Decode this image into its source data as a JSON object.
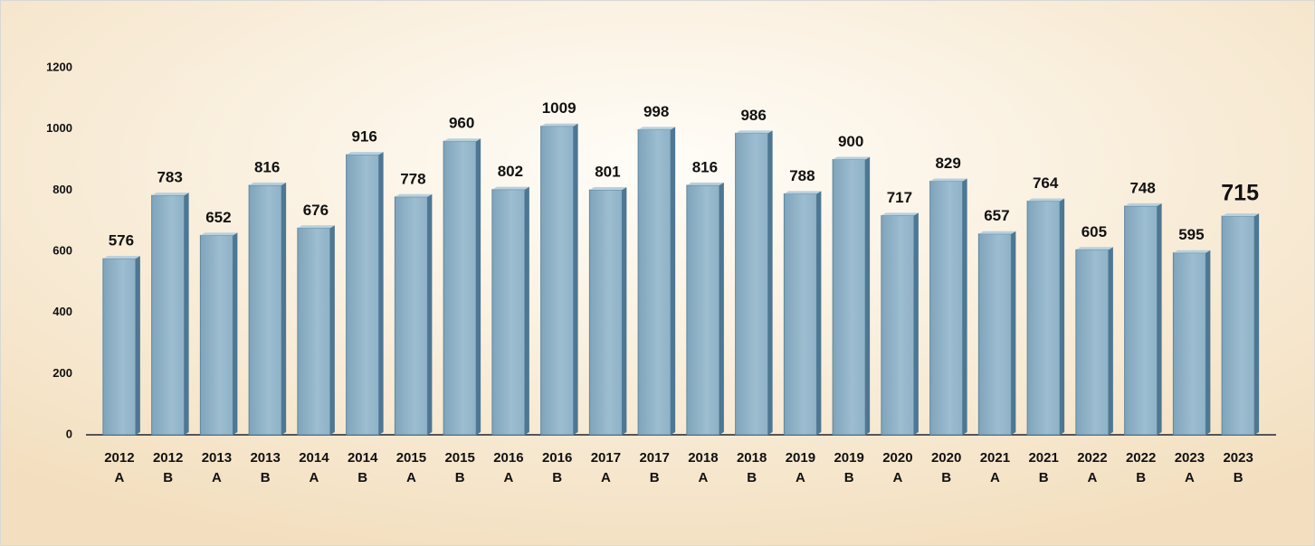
{
  "chart_data": {
    "type": "bar3d",
    "categories": [
      [
        "2012",
        "A"
      ],
      [
        "2012",
        "B"
      ],
      [
        "2013",
        "A"
      ],
      [
        "2013",
        "B"
      ],
      [
        "2014",
        "A"
      ],
      [
        "2014",
        "B"
      ],
      [
        "2015",
        "A"
      ],
      [
        "2015",
        "B"
      ],
      [
        "2016",
        "A"
      ],
      [
        "2016",
        "B"
      ],
      [
        "2017",
        "A"
      ],
      [
        "2017",
        "B"
      ],
      [
        "2018",
        "A"
      ],
      [
        "2018",
        "B"
      ],
      [
        "2019",
        "A"
      ],
      [
        "2019",
        "B"
      ],
      [
        "2020",
        "A"
      ],
      [
        "2020",
        "B"
      ],
      [
        "2021",
        "A"
      ],
      [
        "2021",
        "B"
      ],
      [
        "2022",
        "A"
      ],
      [
        "2022",
        "B"
      ],
      [
        "2023",
        "A"
      ],
      [
        "2023",
        "B"
      ]
    ],
    "values": [
      576,
      783,
      652,
      816,
      676,
      916,
      778,
      960,
      802,
      1009,
      801,
      998,
      816,
      986,
      788,
      900,
      717,
      829,
      657,
      764,
      605,
      748,
      595,
      715
    ],
    "color": "#8fb2c7",
    "ylim": [
      0,
      1200
    ],
    "yticks": [
      0,
      200,
      400,
      600,
      800,
      1000,
      1200
    ],
    "grid": false,
    "emphasis_index": 23
  }
}
